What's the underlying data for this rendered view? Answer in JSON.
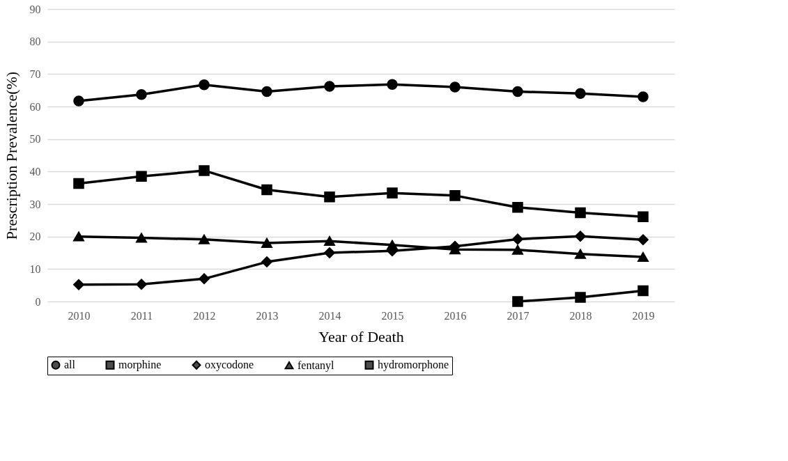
{
  "chart_data": {
    "type": "line",
    "xlabel": "Year of Death",
    "ylabel": "Prescription Prevalence(%)",
    "categories": [
      "2010",
      "2011",
      "2012",
      "2013",
      "2014",
      "2015",
      "2016",
      "2017",
      "2018",
      "2019"
    ],
    "series": [
      {
        "name": "all",
        "color": "#000000",
        "marker": "circle",
        "values": [
          61.7,
          63.7,
          66.7,
          64.6,
          66.2,
          66.8,
          66.0,
          64.6,
          64.0,
          63.0
        ]
      },
      {
        "name": "morphine",
        "color": "#000000",
        "marker": "square",
        "values": [
          36.3,
          38.5,
          40.3,
          34.4,
          32.2,
          33.4,
          32.6,
          29.0,
          27.3,
          26.1
        ]
      },
      {
        "name": "oxycodone",
        "color": "#000000",
        "marker": "diamond",
        "values": [
          5.2,
          5.3,
          7.0,
          12.2,
          15.0,
          15.6,
          17.0,
          19.2,
          20.1,
          19.0
        ]
      },
      {
        "name": "fentanyl",
        "color": "#000000",
        "marker": "triangle",
        "values": [
          20.0,
          19.6,
          19.1,
          18.0,
          18.6,
          17.4,
          16.0,
          15.9,
          14.6,
          13.7
        ]
      },
      {
        "name": "hydromorphone",
        "color": "#000000",
        "marker": "square",
        "values": [
          null,
          null,
          null,
          null,
          null,
          null,
          null,
          0.0,
          1.3,
          3.3
        ]
      }
    ],
    "ylim": [
      0,
      90
    ],
    "yticks": [
      0,
      10,
      20,
      30,
      40,
      50,
      60,
      70,
      80,
      90
    ],
    "grid": "y",
    "legend": "bottom",
    "line_style": "solid"
  }
}
